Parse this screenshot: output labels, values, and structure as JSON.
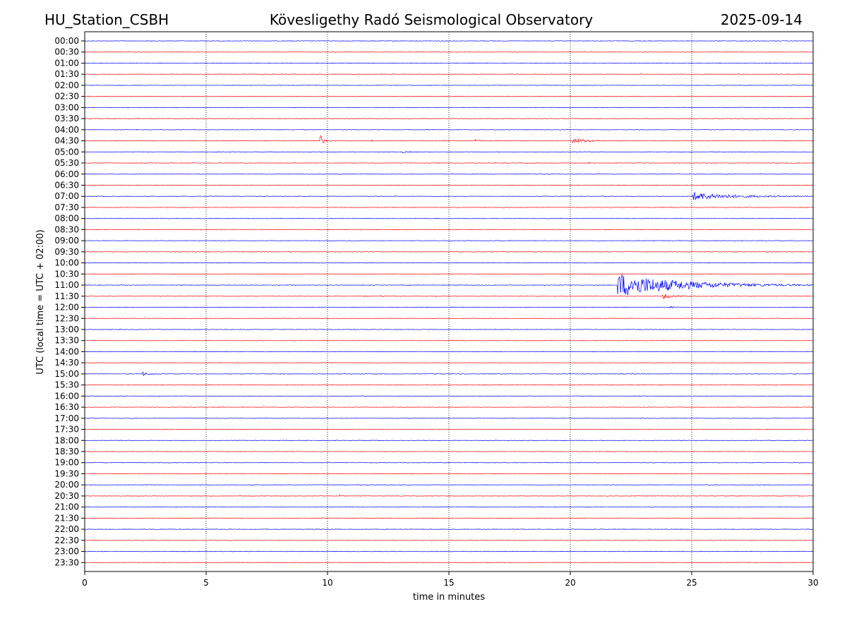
{
  "header": {
    "station": "HU_Station_CSBH",
    "observatory": "Kövesligethy Radó Seismological Observatory",
    "date": "2025-09-14"
  },
  "chart_data": {
    "type": "line",
    "title": "Kövesligethy Radó Seismological Observatory",
    "xlabel": "time in minutes",
    "ylabel": "UTC (local time = UTC + 02:00)",
    "xlim": [
      0,
      30
    ],
    "xticks": [
      0,
      5,
      10,
      15,
      20,
      25,
      30
    ],
    "vertical_gridlines": [
      5,
      10,
      15,
      20,
      25
    ],
    "row_labels": [
      "00:00",
      "00:30",
      "01:00",
      "01:30",
      "02:00",
      "02:30",
      "03:00",
      "03:30",
      "04:00",
      "04:30",
      "05:00",
      "05:30",
      "06:00",
      "06:30",
      "07:00",
      "07:30",
      "08:00",
      "08:30",
      "09:00",
      "09:30",
      "10:00",
      "10:30",
      "11:00",
      "11:30",
      "12:00",
      "12:30",
      "13:00",
      "13:30",
      "14:00",
      "14:30",
      "15:00",
      "15:30",
      "16:00",
      "16:30",
      "17:00",
      "17:30",
      "18:00",
      "18:30",
      "19:00",
      "19:30",
      "20:00",
      "20:30",
      "21:00",
      "21:30",
      "22:00",
      "22:30",
      "23:00",
      "23:30"
    ],
    "trace_colors": [
      "#0000ff",
      "#ff0000"
    ],
    "events": [
      {
        "row": "04:30",
        "minute": 9.7,
        "amplitude": 0.85,
        "duration": 0.3
      },
      {
        "row": "04:30",
        "minute": 11.8,
        "amplitude": 0.15,
        "duration": 0.2
      },
      {
        "row": "04:30",
        "minute": 14.8,
        "amplitude": 0.1,
        "duration": 0.15
      },
      {
        "row": "04:30",
        "minute": 16.1,
        "amplitude": 0.2,
        "duration": 0.4
      },
      {
        "row": "04:30",
        "minute": 20.1,
        "amplitude": 0.35,
        "duration": 1.6
      },
      {
        "row": "05:00",
        "minute": 13.1,
        "amplitude": 0.15,
        "duration": 0.5
      },
      {
        "row": "05:30",
        "minute": 20.7,
        "amplitude": 0.1,
        "duration": 0.3
      },
      {
        "row": "07:00",
        "minute": 25.05,
        "amplitude": 0.55,
        "duration": 4.5
      },
      {
        "row": "11:00",
        "minute": 21.95,
        "amplitude": 1.7,
        "duration": 7.0
      },
      {
        "row": "11:30",
        "minute": 23.8,
        "amplitude": 0.35,
        "duration": 1.2
      },
      {
        "row": "11:30",
        "minute": 11.5,
        "amplitude": 0.1,
        "duration": 0.3
      },
      {
        "row": "11:30",
        "minute": 12.2,
        "amplitude": 0.1,
        "duration": 0.3
      },
      {
        "row": "12:00",
        "minute": 24.1,
        "amplitude": 0.12,
        "duration": 0.5
      },
      {
        "row": "15:00",
        "minute": 2.4,
        "amplitude": 0.25,
        "duration": 0.6
      },
      {
        "row": "20:30",
        "minute": 10.5,
        "amplitude": 0.15,
        "duration": 0.3
      },
      {
        "row": "20:00",
        "minute": 27.8,
        "amplitude": 0.1,
        "duration": 0.2
      }
    ]
  }
}
